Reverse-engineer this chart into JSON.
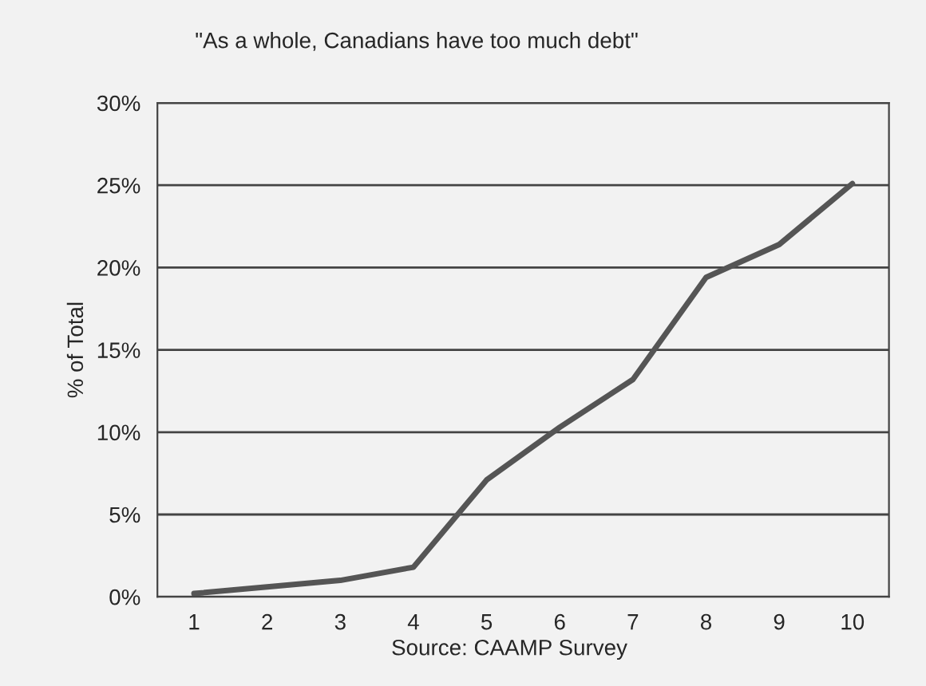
{
  "chart_data": {
    "type": "line",
    "title": "\"As a whole, Canadians have too much debt\"",
    "ylabel": "% of Total",
    "categories": [
      "1",
      "2",
      "3",
      "4",
      "5",
      "6",
      "7",
      "8",
      "9",
      "10"
    ],
    "series": [
      {
        "color": "#555555",
        "values": [
          0.2,
          0.6,
          1.0,
          1.8,
          7.1,
          10.3,
          13.2,
          19.4,
          21.4,
          25.1
        ]
      }
    ],
    "ylim": [
      0,
      30
    ],
    "yticks": [
      {
        "value": 0,
        "label": "0%"
      },
      {
        "value": 5,
        "label": "5%"
      },
      {
        "value": 10,
        "label": "10%"
      },
      {
        "value": 15,
        "label": "15%"
      },
      {
        "value": 20,
        "label": "20%"
      },
      {
        "value": 25,
        "label": "25%"
      },
      {
        "value": 30,
        "label": "30%"
      }
    ],
    "grid": "y",
    "marker": "none",
    "line_style": "solid",
    "annotations": [
      "Source: CAAMP Survey"
    ]
  }
}
